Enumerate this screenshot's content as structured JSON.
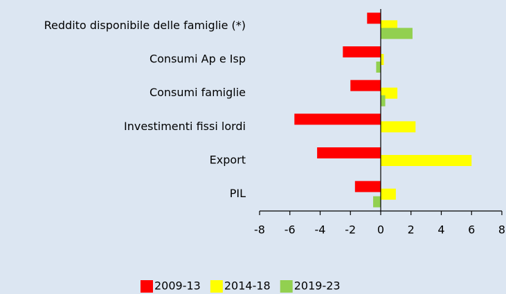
{
  "chart_data": {
    "type": "hbar",
    "categories": [
      "Reddito disponibile delle famiglie (*)",
      "Consumi Ap e Isp",
      "Consumi famiglie",
      "Investimenti fissi lordi",
      "Export",
      "PIL"
    ],
    "series": [
      {
        "name": "2009-13",
        "color": "#ff0000",
        "values": [
          -0.9,
          -2.5,
          -2.0,
          -5.7,
          -4.2,
          -1.7
        ]
      },
      {
        "name": "2014-18",
        "color": "#ffff00",
        "values": [
          1.1,
          0.2,
          1.1,
          2.3,
          6.0,
          1.0
        ]
      },
      {
        "name": "2019-23",
        "color": "#92d050",
        "values": [
          2.1,
          -0.3,
          0.3,
          0,
          0,
          -0.5
        ]
      }
    ],
    "xlim": [
      -8,
      8
    ],
    "xticks": [
      -8,
      -6,
      -4,
      -2,
      0,
      2,
      4,
      6,
      8
    ]
  }
}
